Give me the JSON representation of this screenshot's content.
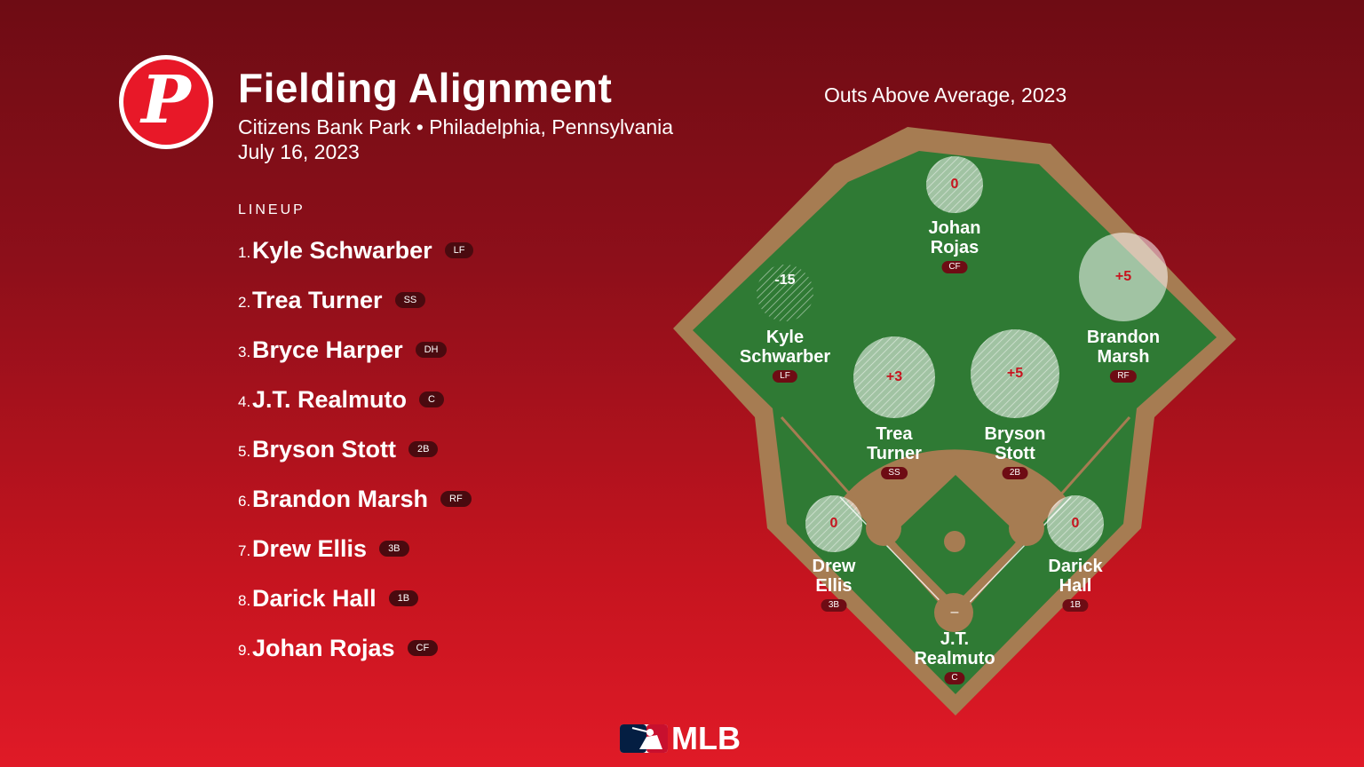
{
  "header": {
    "title": "Fielding Alignment",
    "venue": "Citizens Bank Park • Philadelphia, Pennsylvania",
    "date": "July 16, 2023",
    "metric_title": "Outs Above Average, 2023",
    "team_logo_letter": "P"
  },
  "lineup": {
    "heading": "LINEUP",
    "players": [
      {
        "num": "1.",
        "name": "Kyle Schwarber",
        "pos": "LF"
      },
      {
        "num": "2.",
        "name": "Trea Turner",
        "pos": "SS"
      },
      {
        "num": "3.",
        "name": "Bryce Harper",
        "pos": "DH"
      },
      {
        "num": "4.",
        "name": "J.T. Realmuto",
        "pos": "C"
      },
      {
        "num": "5.",
        "name": "Bryson Stott",
        "pos": "2B"
      },
      {
        "num": "6.",
        "name": "Brandon Marsh",
        "pos": "RF"
      },
      {
        "num": "7.",
        "name": "Drew Ellis",
        "pos": "3B"
      },
      {
        "num": "8.",
        "name": "Darick Hall",
        "pos": "1B"
      },
      {
        "num": "9.",
        "name": "Johan Rojas",
        "pos": "CF"
      }
    ]
  },
  "field": {
    "positions": {
      "cf": {
        "first": "Johan",
        "last": "Rojas",
        "pos": "CF",
        "oaa": "0"
      },
      "lf": {
        "first": "Kyle",
        "last": "Schwarber",
        "pos": "LF",
        "oaa": "-15"
      },
      "rf": {
        "first": "Brandon",
        "last": "Marsh",
        "pos": "RF",
        "oaa": "+5"
      },
      "ss": {
        "first": "Trea",
        "last": "Turner",
        "pos": "SS",
        "oaa": "+3"
      },
      "b2": {
        "first": "Bryson",
        "last": "Stott",
        "pos": "2B",
        "oaa": "+5"
      },
      "b3": {
        "first": "Drew",
        "last": "Ellis",
        "pos": "3B",
        "oaa": "0"
      },
      "b1": {
        "first": "Darick",
        "last": "Hall",
        "pos": "1B",
        "oaa": "0"
      },
      "c": {
        "first": "J.T.",
        "last": "Realmuto",
        "pos": "C",
        "oaa": "–"
      }
    },
    "colors": {
      "grass": "#2e7d32",
      "dirt": "#a67c52",
      "wall": "#a67c52"
    }
  },
  "footer": {
    "brand": "MLB"
  }
}
